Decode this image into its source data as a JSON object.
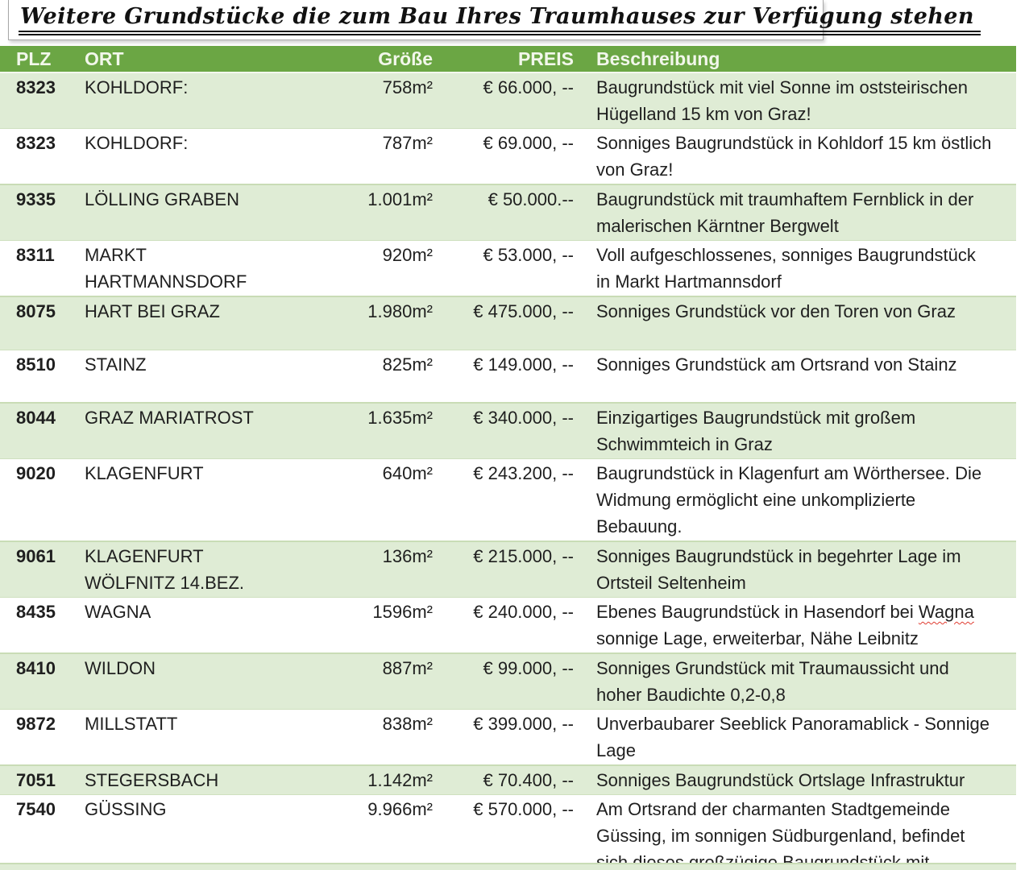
{
  "title": "Weitere Grundstücke die zum Bau Ihres Traumhauses zur Verfügung stehen",
  "colors": {
    "header_green": "#6ba644",
    "row_green": "#dfecd5",
    "header_text": "#f2f7eb",
    "spellcheck_red": "#e03c31"
  },
  "table": {
    "headers": {
      "plz": "PLZ",
      "ort": "ORT",
      "groesse": "Größe",
      "preis": "PREIS",
      "beschreibung": "Beschreibung"
    },
    "rows": [
      {
        "plz": "8323",
        "ort": "KOHLDORF:",
        "groesse": "758m²",
        "preis": "€ 66.000, --",
        "beschreibung": "Baugrundstück mit viel Sonne im oststeirischen Hügelland 15 km von Graz!"
      },
      {
        "plz": "8323",
        "ort": "KOHLDORF:",
        "groesse": "787m²",
        "preis": "€ 69.000, --",
        "beschreibung": "Sonniges Baugrundstück in Kohldorf 15 km östlich von Graz!"
      },
      {
        "plz": "9335",
        "ort": "LÖLLING GRABEN",
        "groesse": "1.001m²",
        "preis": "€ 50.000.--",
        "beschreibung": "Baugrundstück mit traumhaftem Fernblick in der malerischen Kärntner Bergwelt"
      },
      {
        "plz": "8311",
        "ort": "MARKT HARTMANNSDORF",
        "groesse": "920m²",
        "preis": "€ 53.000, --",
        "beschreibung": "Voll aufgeschlossenes, sonniges Baugrundstück in Markt Hartmannsdorf"
      },
      {
        "plz": "8075",
        "ort": "HART BEI GRAZ",
        "groesse": "1.980m²",
        "preis": "€ 475.000, --",
        "beschreibung": "Sonniges Grundstück vor den Toren von Graz"
      },
      {
        "plz": "8510",
        "ort": "STAINZ",
        "groesse": "825m²",
        "preis": "€ 149.000, --",
        "beschreibung": "Sonniges Grundstück am Ortsrand von Stainz"
      },
      {
        "plz": "8044",
        "ort": "GRAZ MARIATROST",
        "groesse": "1.635m²",
        "preis": "€ 340.000, --",
        "beschreibung": "Einzigartiges Baugrundstück mit großem Schwimmteich in Graz"
      },
      {
        "plz": "9020",
        "ort": "KLAGENFURT",
        "groesse": "640m²",
        "preis": "€ 243.200, --",
        "beschreibung": "Baugrundstück in Klagenfurt am Wörthersee. Die Widmung ermöglicht eine unkomplizierte Bebauung."
      },
      {
        "plz": "9061",
        "ort": "KLAGENFURT WÖLFNITZ 14.BEZ.",
        "groesse": "136m²",
        "preis": "€ 215.000, --",
        "beschreibung": "Sonniges Baugrundstück in begehrter Lage im Ortsteil Seltenheim"
      },
      {
        "plz": "8435",
        "ort": "WAGNA",
        "groesse": "1596m²",
        "preis": "€ 240.000, --",
        "beschreibung_pre": "Ebenes Baugrundstück in Hasendorf bei ",
        "beschreibung_wavy": "Wagna",
        "beschreibung_post": " sonnige Lage, erweiterbar, Nähe Leibnitz"
      },
      {
        "plz": "8410",
        "ort": "WILDON",
        "groesse": "887m²",
        "preis": "€ 99.000, --",
        "beschreibung": "Sonniges Grundstück mit Traumaussicht und hoher Baudichte 0,2-0,8"
      },
      {
        "plz": "9872",
        "ort": "MILLSTATT",
        "groesse": "838m²",
        "preis": "€ 399.000, --",
        "beschreibung": "Unverbaubarer Seeblick Panoramablick - Sonnige Lage"
      },
      {
        "plz": "7051",
        "ort": "STEGERSBACH",
        "groesse": "1.142m²",
        "preis": "€ 70.400, --",
        "beschreibung": "Sonniges Baugrundstück Ortslage Infrastruktur"
      },
      {
        "plz": "7540",
        "ort": "GÜSSING",
        "groesse": "9.966m²",
        "preis": "€ 570.000, --",
        "beschreibung": "Am Ortsrand der charmanten Stadtgemeinde Güssing, im sonnigen Südburgenland, befindet sich dieses großzügige Baugrundstück mit Burgblick"
      }
    ]
  }
}
